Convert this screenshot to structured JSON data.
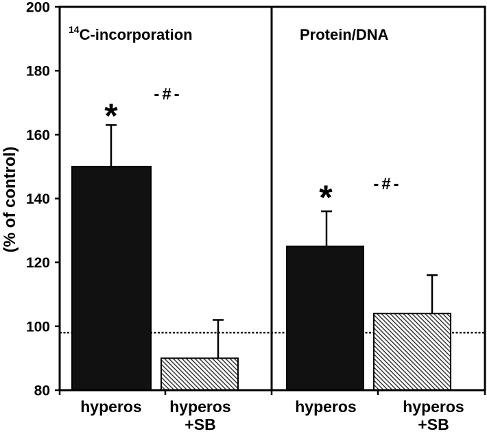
{
  "chart_data": {
    "type": "bar",
    "ylabel": "(% of control)",
    "ylim": [
      80,
      200
    ],
    "yticks": [
      80,
      100,
      120,
      140,
      160,
      180,
      200
    ],
    "reference_line": 98,
    "grid": false,
    "panels": [
      {
        "title_sup": "14",
        "title": "C-incorporation",
        "categories": [
          "hyperos",
          "hyperos\n+SB"
        ],
        "values": [
          150,
          90
        ],
        "error_upper": [
          163,
          102
        ],
        "annotations": [
          "*",
          "-#-"
        ]
      },
      {
        "title": "Protein/DNA",
        "categories": [
          "hyperos",
          "hyperos\n+SB"
        ],
        "values": [
          125,
          104
        ],
        "error_upper": [
          136,
          116
        ],
        "annotations": [
          "*",
          "-#-"
        ]
      }
    ]
  },
  "colors": {
    "background": "#ffffff",
    "axis": "#000000",
    "solid_bar": "#111111",
    "hatch_line": "#2b2b2b"
  }
}
